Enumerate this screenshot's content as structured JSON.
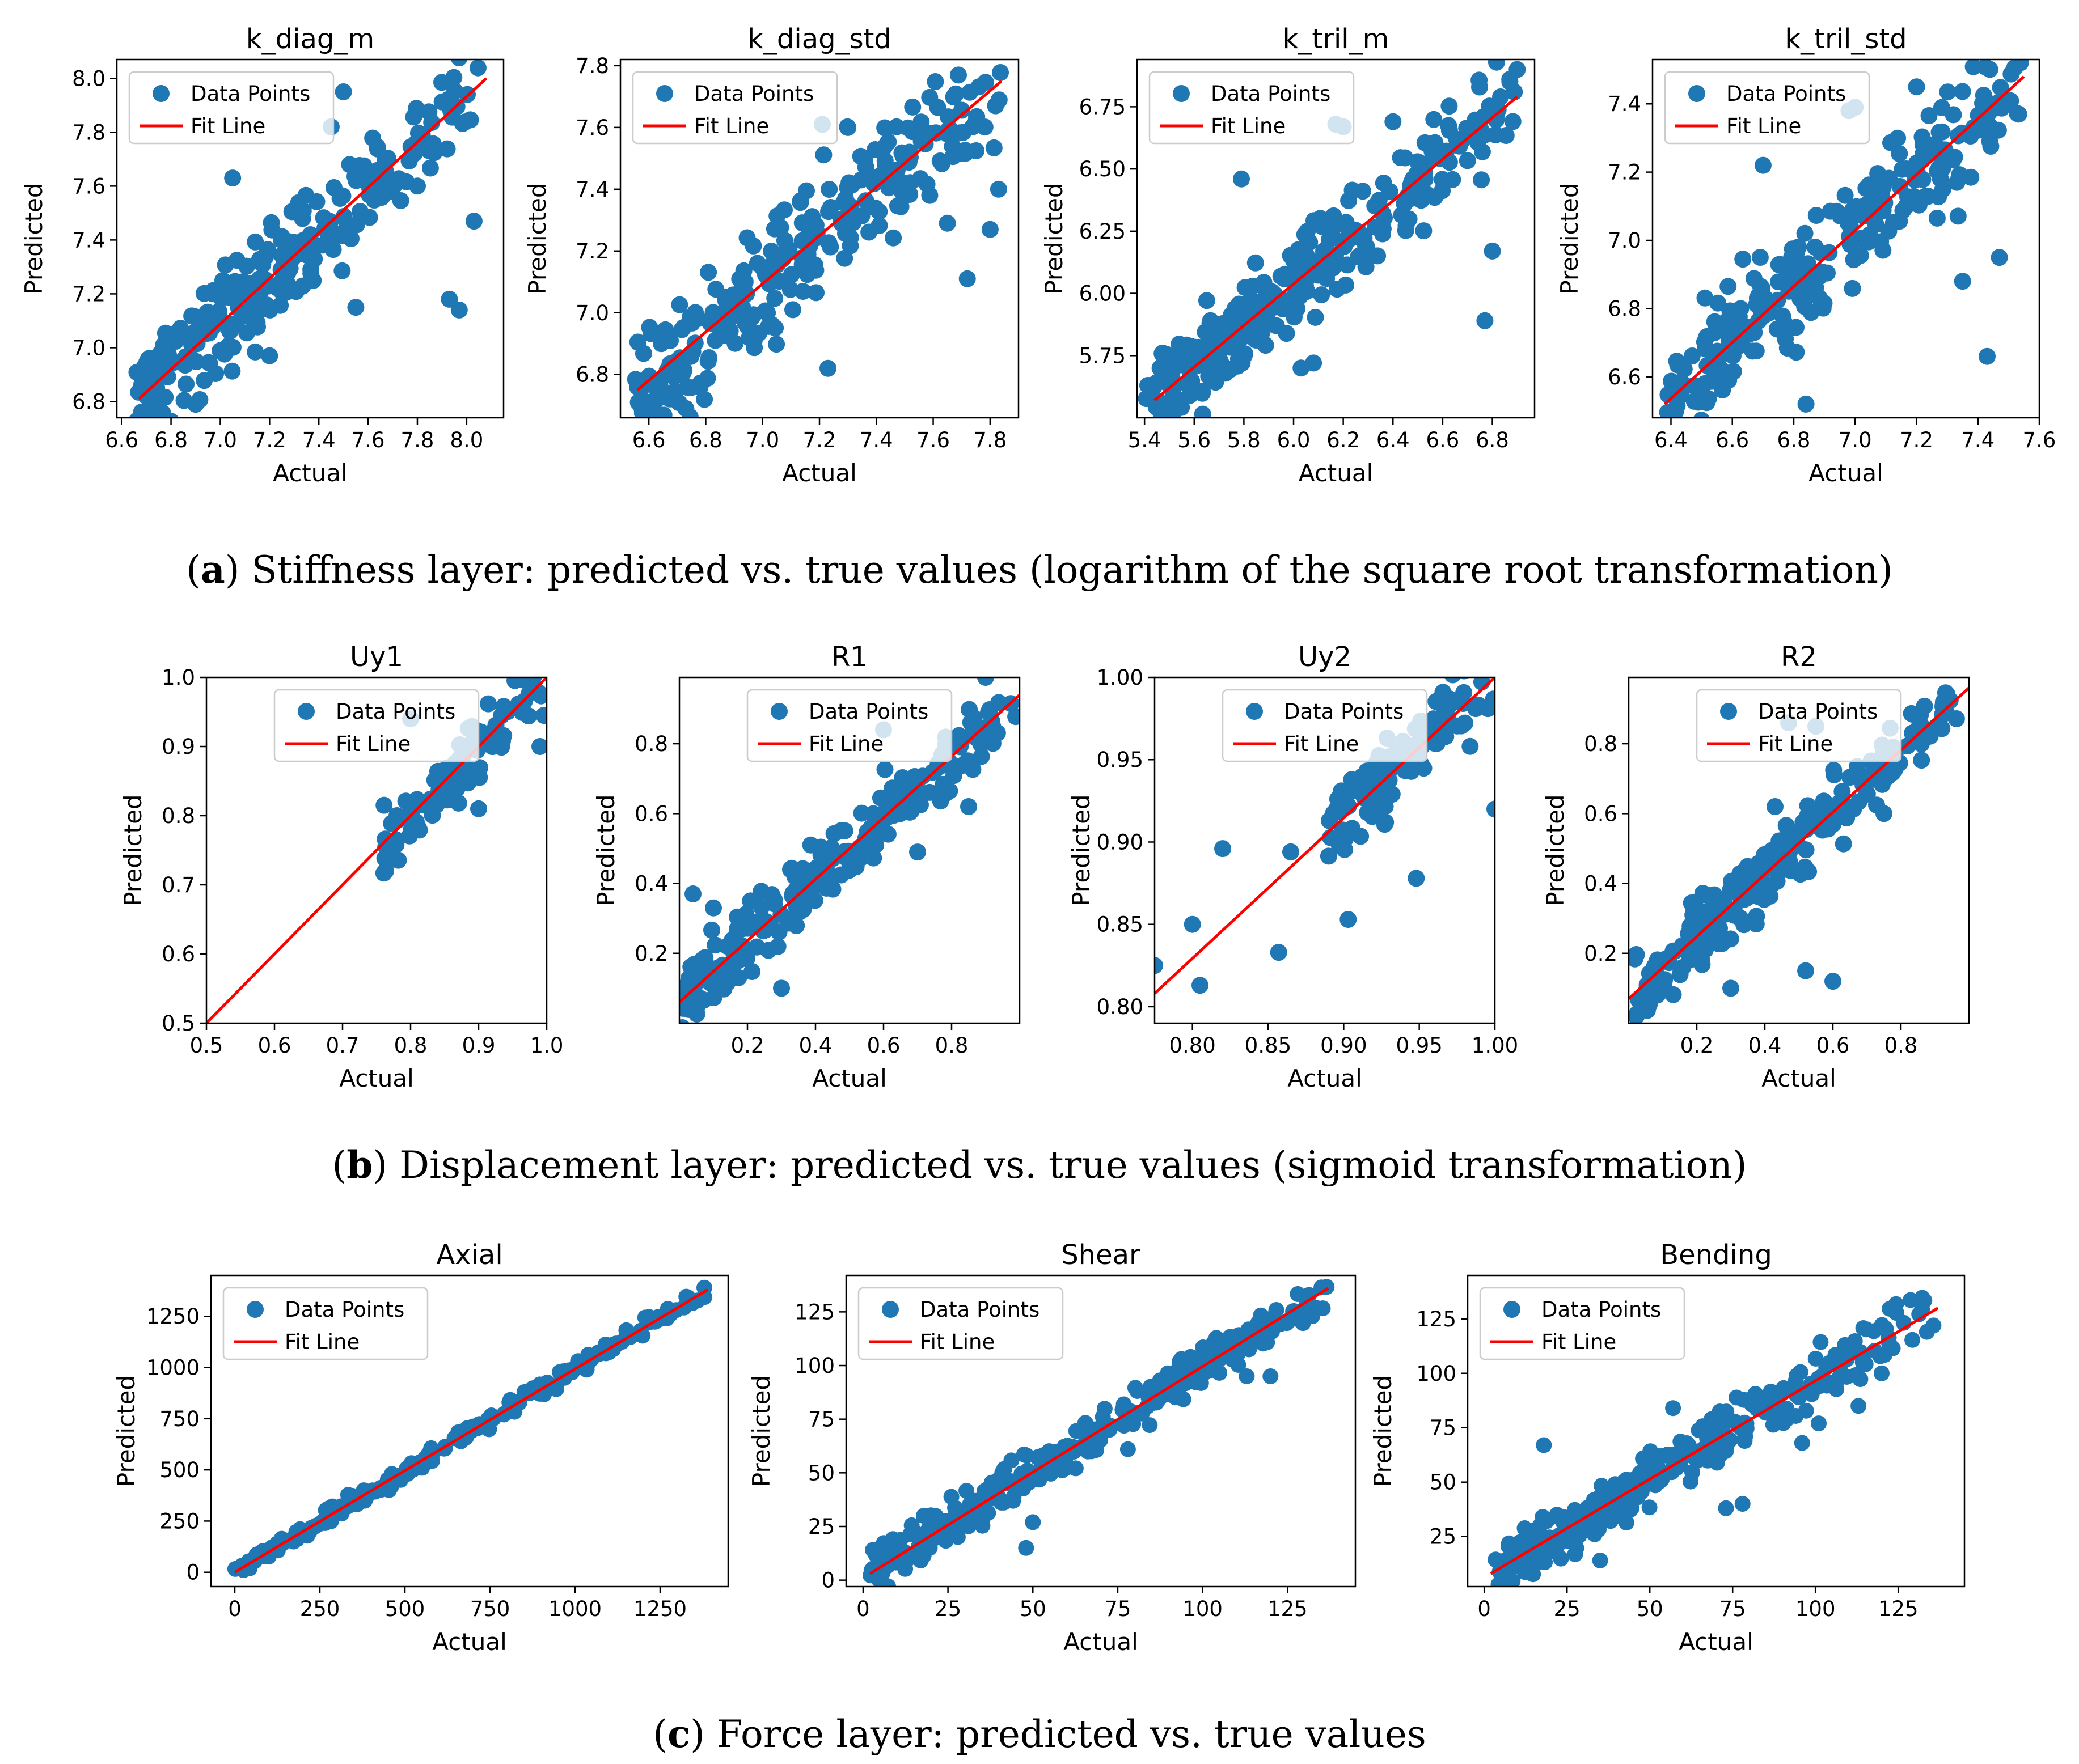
{
  "colors": {
    "points": "#1f77b4",
    "fit_line": "#ff0000",
    "frame": "#000000"
  },
  "captions": [
    {
      "label": "a",
      "text": " Stiffness layer: predicted vs. true values (logarithm of the square root transformation)"
    },
    {
      "label": "b",
      "text": " Displacement layer: predicted vs. true values (sigmoid transformation)"
    },
    {
      "label": "c",
      "text": " Force layer: predicted vs. true values"
    }
  ],
  "chart_data": [
    {
      "type": "scatter",
      "title": "k_diag_m",
      "xlabel": "Actual",
      "ylabel": "Predicted",
      "xlim": [
        6.58,
        8.15
      ],
      "ylim": [
        6.74,
        8.07
      ],
      "xticks": [
        "6.6",
        "6.8",
        "7.0",
        "7.2",
        "7.4",
        "7.6",
        "7.8",
        "8.0"
      ],
      "xtick_values": [
        6.6,
        6.8,
        7.0,
        7.2,
        7.4,
        7.6,
        7.8,
        8.0
      ],
      "yticks": [
        "6.8",
        "7.0",
        "7.2",
        "7.4",
        "7.6",
        "7.8",
        "8.0"
      ],
      "ytick_values": [
        6.8,
        7.0,
        7.2,
        7.4,
        7.6,
        7.8,
        8.0
      ],
      "legend": [
        "Data Points",
        "Fit Line"
      ],
      "legend_loc": "upper left",
      "fit_line": {
        "x": [
          6.67,
          8.08
        ],
        "y": [
          6.81,
          8.0
        ]
      },
      "scatter": {
        "x_range": [
          6.66,
          8.1
        ],
        "noise": 0.09,
        "n": 260,
        "outliers": [
          [
            7.5,
            7.95
          ],
          [
            7.45,
            7.82
          ],
          [
            7.05,
            7.63
          ],
          [
            8.03,
            7.47
          ],
          [
            7.93,
            7.18
          ],
          [
            7.97,
            7.14
          ],
          [
            7.55,
            7.15
          ],
          [
            7.2,
            6.97
          ],
          [
            6.9,
            6.79
          ],
          [
            7.8,
            7.6
          ]
        ]
      }
    },
    {
      "type": "scatter",
      "title": "k_diag_std",
      "xlabel": "Actual",
      "ylabel": "Predicted",
      "xlim": [
        6.5,
        7.9
      ],
      "ylim": [
        6.66,
        7.82
      ],
      "xticks": [
        "6.6",
        "6.8",
        "7.0",
        "7.2",
        "7.4",
        "7.6",
        "7.8"
      ],
      "xtick_values": [
        6.6,
        6.8,
        7.0,
        7.2,
        7.4,
        7.6,
        7.8
      ],
      "yticks": [
        "6.8",
        "7.0",
        "7.2",
        "7.4",
        "7.6",
        "7.8"
      ],
      "ytick_values": [
        6.8,
        7.0,
        7.2,
        7.4,
        7.6,
        7.8
      ],
      "legend": [
        "Data Points",
        "Fit Line"
      ],
      "legend_loc": "upper left",
      "fit_line": {
        "x": [
          6.56,
          7.84
        ],
        "y": [
          6.75,
          7.75
        ]
      },
      "scatter": {
        "x_range": [
          6.55,
          7.84
        ],
        "noise": 0.1,
        "n": 250,
        "outliers": [
          [
            6.56,
            6.76
          ],
          [
            6.6,
            6.71
          ],
          [
            6.73,
            6.69
          ],
          [
            6.78,
            6.76
          ],
          [
            7.21,
            7.61
          ],
          [
            7.3,
            7.6
          ],
          [
            7.23,
            6.82
          ],
          [
            7.65,
            7.29
          ],
          [
            7.72,
            7.11
          ],
          [
            7.8,
            7.27
          ],
          [
            7.83,
            7.4
          ]
        ]
      }
    },
    {
      "type": "scatter",
      "title": "k_tril_m",
      "xlabel": "Actual",
      "ylabel": "Predicted",
      "xlim": [
        5.37,
        6.97
      ],
      "ylim": [
        5.5,
        6.94
      ],
      "xticks": [
        "5.4",
        "5.6",
        "5.8",
        "6.0",
        "6.2",
        "6.4",
        "6.6",
        "6.8"
      ],
      "xtick_values": [
        5.4,
        5.6,
        5.8,
        6.0,
        6.2,
        6.4,
        6.6,
        6.8
      ],
      "yticks": [
        "5.75",
        "6.00",
        "6.25",
        "6.50",
        "6.75"
      ],
      "ytick_values": [
        5.75,
        6.0,
        6.25,
        6.5,
        6.75
      ],
      "legend": [
        "Data Points",
        "Fit Line"
      ],
      "legend_loc": "upper left",
      "fit_line": {
        "x": [
          5.44,
          6.9
        ],
        "y": [
          5.57,
          6.79
        ]
      },
      "scatter": {
        "x_range": [
          5.4,
          6.9
        ],
        "noise": 0.09,
        "n": 300,
        "outliers": [
          [
            5.79,
            6.46
          ],
          [
            6.17,
            6.68
          ],
          [
            6.2,
            6.67
          ],
          [
            6.4,
            6.69
          ],
          [
            6.77,
            5.89
          ],
          [
            6.8,
            6.17
          ],
          [
            6.03,
            5.7
          ],
          [
            6.08,
            5.72
          ],
          [
            6.87,
            6.86
          ],
          [
            6.9,
            6.9
          ]
        ]
      }
    },
    {
      "type": "scatter",
      "title": "k_tril_std",
      "xlabel": "Actual",
      "ylabel": "Predicted",
      "xlim": [
        6.34,
        7.6
      ],
      "ylim": [
        6.48,
        7.53
      ],
      "xticks": [
        "6.4",
        "6.6",
        "6.8",
        "7.0",
        "7.2",
        "7.4",
        "7.6"
      ],
      "xtick_values": [
        6.4,
        6.6,
        6.8,
        7.0,
        7.2,
        7.4,
        7.6
      ],
      "yticks": [
        "6.6",
        "6.8",
        "7.0",
        "7.2",
        "7.4"
      ],
      "ytick_values": [
        6.6,
        6.8,
        7.0,
        7.2,
        7.4
      ],
      "legend": [
        "Data Points",
        "Fit Line"
      ],
      "legend_loc": "upper left",
      "fit_line": {
        "x": [
          6.38,
          7.55
        ],
        "y": [
          6.52,
          7.48
        ]
      },
      "scatter": {
        "x_range": [
          6.38,
          7.55
        ],
        "noise": 0.08,
        "n": 260,
        "outliers": [
          [
            6.98,
            7.38
          ],
          [
            7.0,
            7.39
          ],
          [
            6.7,
            7.22
          ],
          [
            7.35,
            6.88
          ],
          [
            7.43,
            6.66
          ],
          [
            7.47,
            6.95
          ],
          [
            6.84,
            6.52
          ],
          [
            7.2,
            7.45
          ]
        ]
      }
    },
    {
      "type": "scatter",
      "title": "Uy1",
      "xlabel": "Actual",
      "ylabel": "Predicted",
      "xlim": [
        0.5,
        1.0
      ],
      "ylim": [
        0.5,
        1.0
      ],
      "xticks": [
        "0.5",
        "0.6",
        "0.7",
        "0.8",
        "0.9",
        "1.0"
      ],
      "xtick_values": [
        0.5,
        0.6,
        0.7,
        0.8,
        0.9,
        1.0
      ],
      "yticks": [
        "0.5",
        "0.6",
        "0.7",
        "0.8",
        "0.9",
        "1.0"
      ],
      "ytick_values": [
        0.5,
        0.6,
        0.7,
        0.8,
        0.9,
        1.0
      ],
      "legend": [
        "Data Points",
        "Fit Line"
      ],
      "legend_loc": "upper center",
      "fit_line": {
        "x": [
          0.5,
          1.0
        ],
        "y": [
          0.5,
          1.0
        ]
      },
      "scatter": {
        "x_range": [
          0.76,
          1.0
        ],
        "noise": 0.025,
        "n": 90,
        "outliers": [
          [
            0.8,
            0.94
          ],
          [
            0.9,
            0.81
          ],
          [
            0.78,
            0.8
          ],
          [
            0.99,
            0.9
          ]
        ]
      }
    },
    {
      "type": "scatter",
      "title": "R1",
      "xlabel": "Actual",
      "ylabel": "Predicted",
      "xlim": [
        0.0,
        1.0
      ],
      "ylim": [
        0.0,
        0.99
      ],
      "xticks": [
        "0.2",
        "0.4",
        "0.6",
        "0.8"
      ],
      "xtick_values": [
        0.2,
        0.4,
        0.6,
        0.8
      ],
      "yticks": [
        "0.2",
        "0.4",
        "0.6",
        "0.8"
      ],
      "ytick_values": [
        0.2,
        0.4,
        0.6,
        0.8
      ],
      "legend": [
        "Data Points",
        "Fit Line"
      ],
      "legend_loc": "upper center",
      "fit_line": {
        "x": [
          0.0,
          1.0
        ],
        "y": [
          0.06,
          0.94
        ]
      },
      "scatter": {
        "x_range": [
          0.0,
          1.0
        ],
        "noise": 0.05,
        "n": 240,
        "outliers": [
          [
            0.04,
            0.37
          ],
          [
            0.1,
            0.33
          ],
          [
            0.6,
            0.84
          ],
          [
            0.7,
            0.49
          ],
          [
            0.85,
            0.62
          ],
          [
            0.3,
            0.1
          ],
          [
            0.9,
            0.99
          ]
        ]
      }
    },
    {
      "type": "scatter",
      "title": "Uy2",
      "xlabel": "Actual",
      "ylabel": "Predicted",
      "xlim": [
        0.775,
        1.0
      ],
      "ylim": [
        0.79,
        1.0
      ],
      "xticks": [
        "0.80",
        "0.85",
        "0.90",
        "0.95",
        "1.00"
      ],
      "xtick_values": [
        0.8,
        0.85,
        0.9,
        0.95,
        1.0
      ],
      "yticks": [
        "0.80",
        "0.85",
        "0.90",
        "0.95",
        "1.00"
      ],
      "ytick_values": [
        0.8,
        0.85,
        0.9,
        0.95,
        1.0
      ],
      "legend": [
        "Data Points",
        "Fit Line"
      ],
      "legend_loc": "upper center",
      "fit_line": {
        "x": [
          0.775,
          1.0
        ],
        "y": [
          0.808,
          1.0
        ]
      },
      "scatter": {
        "x_range": [
          0.89,
          1.0
        ],
        "noise": 0.012,
        "n": 110,
        "outliers": [
          [
            0.775,
            0.825
          ],
          [
            0.8,
            0.85
          ],
          [
            0.805,
            0.813
          ],
          [
            0.82,
            0.896
          ],
          [
            0.857,
            0.833
          ],
          [
            0.865,
            0.894
          ],
          [
            0.903,
            0.853
          ],
          [
            0.948,
            0.878
          ],
          [
            1.0,
            0.92
          ],
          [
            0.97,
            0.983
          ],
          [
            0.96,
            0.96
          ]
        ]
      }
    },
    {
      "type": "scatter",
      "title": "R2",
      "xlabel": "Actual",
      "ylabel": "Predicted",
      "xlim": [
        0.0,
        1.0
      ],
      "ylim": [
        0.0,
        0.99
      ],
      "xticks": [
        "0.2",
        "0.4",
        "0.6",
        "0.8"
      ],
      "xtick_values": [
        0.2,
        0.4,
        0.6,
        0.8
      ],
      "yticks": [
        "0.2",
        "0.4",
        "0.6",
        "0.8"
      ],
      "ytick_values": [
        0.2,
        0.4,
        0.6,
        0.8
      ],
      "legend": [
        "Data Points",
        "Fit Line"
      ],
      "legend_loc": "upper center",
      "fit_line": {
        "x": [
          0.0,
          1.0
        ],
        "y": [
          0.07,
          0.96
        ]
      },
      "scatter": {
        "x_range": [
          0.0,
          1.0
        ],
        "noise": 0.05,
        "n": 240,
        "outliers": [
          [
            0.47,
            0.86
          ],
          [
            0.55,
            0.85
          ],
          [
            0.3,
            0.1
          ],
          [
            0.43,
            0.62
          ],
          [
            0.6,
            0.12
          ],
          [
            0.52,
            0.15
          ],
          [
            0.75,
            0.6
          ]
        ]
      }
    },
    {
      "type": "scatter",
      "title": "Axial",
      "xlabel": "Actual",
      "ylabel": "Predicted",
      "xlim": [
        -70,
        1450
      ],
      "ylim": [
        -70,
        1450
      ],
      "xticks": [
        "0",
        "250",
        "500",
        "750",
        "1000",
        "1250"
      ],
      "xtick_values": [
        0,
        250,
        500,
        750,
        1000,
        1250
      ],
      "yticks": [
        "0",
        "250",
        "500",
        "750",
        "1000",
        "1250"
      ],
      "ytick_values": [
        0,
        250,
        500,
        750,
        1000,
        1250
      ],
      "legend": [
        "Data Points",
        "Fit Line"
      ],
      "legend_loc": "upper left",
      "fit_line": {
        "x": [
          0,
          1390
        ],
        "y": [
          0,
          1380
        ]
      },
      "scatter": {
        "x_range": [
          0,
          1390
        ],
        "noise": 18,
        "n": 230,
        "outliers": [
          [
            1380,
            1390
          ],
          [
            1280,
            1260
          ],
          [
            1270,
            1240
          ]
        ]
      }
    },
    {
      "type": "scatter",
      "title": "Shear",
      "xlabel": "Actual",
      "ylabel": "Predicted",
      "xlim": [
        -5,
        145
      ],
      "ylim": [
        -3,
        142
      ],
      "xticks": [
        "0",
        "25",
        "50",
        "75",
        "100",
        "125"
      ],
      "xtick_values": [
        0,
        25,
        50,
        75,
        100,
        125
      ],
      "yticks": [
        "0",
        "25",
        "50",
        "75",
        "100",
        "125"
      ],
      "ytick_values": [
        0,
        25,
        50,
        75,
        100,
        125
      ],
      "legend": [
        "Data Points",
        "Fit Line"
      ],
      "legend_loc": "upper left",
      "fit_line": {
        "x": [
          2,
          137
        ],
        "y": [
          3,
          136
        ]
      },
      "scatter": {
        "x_range": [
          2,
          137
        ],
        "noise": 5,
        "n": 300,
        "outliers": [
          [
            50,
            27
          ],
          [
            78,
            61
          ],
          [
            113,
            95
          ],
          [
            120,
            95
          ],
          [
            48,
            15
          ],
          [
            7,
            12
          ]
        ]
      }
    },
    {
      "type": "scatter",
      "title": "Bending",
      "xlabel": "Actual",
      "ylabel": "Predicted",
      "xlim": [
        -5,
        145
      ],
      "ylim": [
        2,
        145
      ],
      "xticks": [
        "0",
        "25",
        "50",
        "75",
        "100",
        "125"
      ],
      "xtick_values": [
        0,
        25,
        50,
        75,
        100,
        125
      ],
      "yticks": [
        "25",
        "50",
        "75",
        "100",
        "125"
      ],
      "ytick_values": [
        25,
        50,
        75,
        100,
        125
      ],
      "legend": [
        "Data Points",
        "Fit Line"
      ],
      "legend_loc": "upper left",
      "fit_line": {
        "x": [
          2,
          137
        ],
        "y": [
          8,
          130
        ]
      },
      "scatter": {
        "x_range": [
          2,
          137
        ],
        "noise": 6,
        "n": 320,
        "outliers": [
          [
            18,
            67
          ],
          [
            57,
            84
          ],
          [
            96,
            68
          ],
          [
            101,
            77
          ],
          [
            113,
            85
          ],
          [
            78,
            40
          ],
          [
            73,
            38
          ],
          [
            120,
            100
          ],
          [
            35,
            14
          ]
        ]
      }
    }
  ]
}
